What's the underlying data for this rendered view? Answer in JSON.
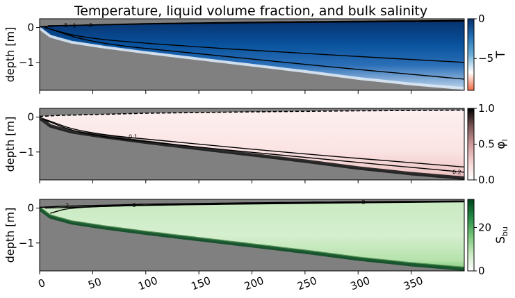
{
  "title": "Temperature, liquid volume fraction, and bulk salinity",
  "colors": {
    "ground": "#808080",
    "edge": "#000000"
  },
  "xaxis": {
    "range": [
      0,
      400
    ],
    "ticks": [
      0,
      50,
      100,
      150,
      200,
      250,
      300,
      350
    ],
    "tick_labels": [
      "0",
      "50",
      "100",
      "150",
      "200",
      "250",
      "300",
      "350"
    ]
  },
  "chart_data": [
    {
      "type": "heatmap",
      "ylabel": "depth [m]",
      "ylim": [
        -1.8,
        0.25
      ],
      "yticks": [
        0,
        -1
      ],
      "ytick_labels": [
        "0",
        "−1"
      ],
      "surface": [
        [
          0,
          0.02
        ],
        [
          20,
          0.05
        ],
        [
          100,
          0.11
        ],
        [
          200,
          0.15
        ],
        [
          300,
          0.18
        ],
        [
          400,
          0.2
        ]
      ],
      "bottom": [
        [
          0,
          -0.02
        ],
        [
          10,
          -0.25
        ],
        [
          30,
          -0.42
        ],
        [
          60,
          -0.56
        ],
        [
          100,
          -0.72
        ],
        [
          150,
          -0.9
        ],
        [
          200,
          -1.08
        ],
        [
          250,
          -1.26
        ],
        [
          300,
          -1.46
        ],
        [
          350,
          -1.62
        ],
        [
          400,
          -1.75
        ]
      ],
      "fill": {
        "type": "temperature",
        "surface_color": "#08306b",
        "mid_color": "#2b6fb7",
        "base_color": "#c6dbef"
      },
      "contours": [
        {
          "level": -5,
          "points": [
            [
              8,
              0.05
            ],
            [
              60,
              0.08
            ],
            [
              150,
              0.12
            ],
            [
              260,
              0.15
            ],
            [
              400,
              0.18
            ]
          ],
          "label": "-5",
          "label_at": [
            24,
            0.07
          ]
        },
        {
          "level": -1,
          "points": [
            [
              5,
              0.0
            ],
            [
              40,
              -0.3
            ],
            [
              120,
              -0.5
            ],
            [
              250,
              -0.75
            ],
            [
              400,
              -1.0
            ]
          ],
          "label": "-1",
          "label_at": [
            32,
            0.06
          ]
        },
        {
          "level": -3,
          "points": [
            [
              4,
              0.02
            ],
            [
              50,
              -0.45
            ],
            [
              150,
              -0.75
            ],
            [
              280,
              -1.15
            ],
            [
              400,
              -1.48
            ]
          ],
          "label": "-3",
          "label_at": [
            47,
            0.07
          ]
        }
      ],
      "colorbar": {
        "label": "T",
        "label_sub": "",
        "range": [
          -9,
          0
        ],
        "ticks": [
          0,
          -5
        ],
        "tick_labels": [
          "0",
          "−5"
        ],
        "stops": [
          "#f46d43",
          "#ffffff",
          "#6baed6",
          "#2171b5",
          "#08306b"
        ]
      }
    },
    {
      "type": "heatmap",
      "ylabel": "depth [m]",
      "ylim": [
        -1.8,
        0.25
      ],
      "yticks": [
        0,
        -1
      ],
      "ytick_labels": [
        "0",
        "−1"
      ],
      "surface": [
        [
          0,
          0.02
        ],
        [
          20,
          0.05
        ],
        [
          100,
          0.11
        ],
        [
          200,
          0.15
        ],
        [
          300,
          0.18
        ],
        [
          400,
          0.2
        ]
      ],
      "bottom": [
        [
          0,
          -0.02
        ],
        [
          10,
          -0.25
        ],
        [
          30,
          -0.42
        ],
        [
          60,
          -0.56
        ],
        [
          100,
          -0.72
        ],
        [
          150,
          -0.9
        ],
        [
          200,
          -1.08
        ],
        [
          250,
          -1.26
        ],
        [
          300,
          -1.46
        ],
        [
          350,
          -1.62
        ],
        [
          400,
          -1.75
        ]
      ],
      "fill": {
        "type": "liquid",
        "surface_color": "#fdf0f0",
        "mid_color": "#fbe3e3",
        "base_color": "#2a2a2a"
      },
      "contours": [
        {
          "level": 0.1,
          "points": [
            [
              3,
              -0.04
            ],
            [
              40,
              -0.45
            ],
            [
              130,
              -0.72
            ],
            [
              250,
              -1.06
            ],
            [
              400,
              -1.43
            ]
          ],
          "label": "0.1",
          "label_at": [
            88,
            -0.56
          ]
        },
        {
          "level": 0.2,
          "points": [
            [
              3,
              -0.06
            ],
            [
              40,
              -0.5
            ],
            [
              130,
              -0.8
            ],
            [
              250,
              -1.16
            ],
            [
              400,
              -1.58
            ]
          ],
          "label": "0.2",
          "label_at": [
            393,
            -1.57
          ]
        }
      ],
      "colorbar": {
        "label": "φ",
        "label_sub": "l",
        "range": [
          0,
          1
        ],
        "ticks": [
          0,
          0.5,
          1
        ],
        "tick_labels": [
          "0.0",
          "0.5",
          "1.0"
        ],
        "stops": [
          "#ffffff",
          "#f5d3d3",
          "#d09a9a",
          "#7a5656",
          "#000000"
        ]
      }
    },
    {
      "type": "heatmap",
      "ylabel": "depth [m]",
      "ylim": [
        -1.8,
        0.25
      ],
      "yticks": [
        0,
        -1
      ],
      "ytick_labels": [
        "0",
        "−1"
      ],
      "surface": [
        [
          0,
          0.02
        ],
        [
          20,
          0.05
        ],
        [
          100,
          0.11
        ],
        [
          200,
          0.15
        ],
        [
          300,
          0.18
        ],
        [
          400,
          0.2
        ]
      ],
      "bottom": [
        [
          0,
          -0.02
        ],
        [
          10,
          -0.25
        ],
        [
          30,
          -0.42
        ],
        [
          60,
          -0.56
        ],
        [
          100,
          -0.72
        ],
        [
          150,
          -0.9
        ],
        [
          200,
          -1.08
        ],
        [
          250,
          -1.26
        ],
        [
          300,
          -1.46
        ],
        [
          350,
          -1.62
        ],
        [
          400,
          -1.75
        ]
      ],
      "fill": {
        "type": "salinity",
        "surface_color": "#0b5a2b",
        "mid_color": "#d5efcf",
        "base_color": "#0b4d24"
      },
      "contours": [
        {
          "level": 2,
          "points": [
            [
              10,
              -0.15
            ],
            [
              30,
              0.03
            ],
            [
              120,
              0.09
            ],
            [
              260,
              0.14
            ],
            [
              400,
              0.18
            ]
          ],
          "label": "2",
          "label_at": [
            26,
            0.08
          ]
        },
        {
          "level": 8,
          "points": [
            [
              5,
              0.0
            ],
            [
              120,
              0.1
            ],
            [
              250,
              0.15
            ],
            [
              400,
              0.19
            ]
          ],
          "label": "8",
          "label_at": [
            89,
            0.09
          ]
        },
        {
          "level": 8,
          "points": [
            [
              300,
              0.17
            ],
            [
              340,
              0.18
            ]
          ],
          "label": "8",
          "label_at": [
            305,
            0.17
          ]
        }
      ],
      "colorbar": {
        "label": "S",
        "label_sub": "bu",
        "range": [
          0,
          33
        ],
        "ticks": [
          0,
          20
        ],
        "tick_labels": [
          "0",
          "20"
        ],
        "stops": [
          "#ffffff",
          "#c7e9c0",
          "#74c476",
          "#238b45",
          "#00441b"
        ]
      }
    }
  ]
}
